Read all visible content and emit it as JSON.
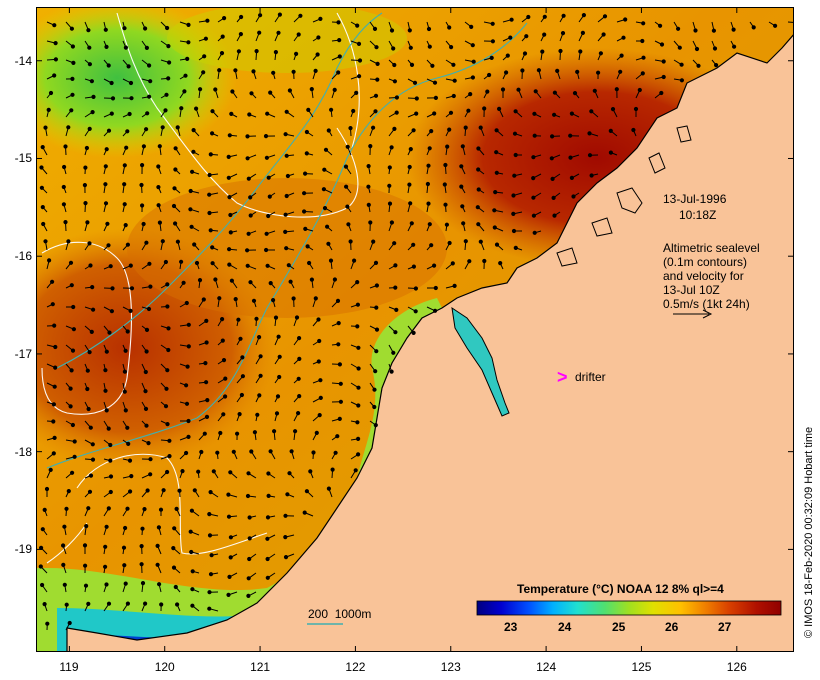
{
  "map": {
    "lon_range": [
      118.65,
      126.6
    ],
    "lat_range": [
      -20.05,
      -13.45
    ],
    "x_ticks": [
      119,
      120,
      121,
      122,
      123,
      124,
      125,
      126
    ],
    "y_ticks": [
      -14,
      -15,
      -16,
      -17,
      -18,
      -19
    ],
    "colors": {
      "land": "#f9c398",
      "coast": "#000000",
      "contour": "#ffffff",
      "isobath": "#40b0b0",
      "arrow": "#000000",
      "drifter": "#ff00ff"
    }
  },
  "annotations": {
    "date": "13-Jul-1996",
    "time": "10:18Z",
    "sealevel_1": "Altimetric sealevel",
    "sealevel_2": "(0.1m contours)",
    "sealevel_3": "and velocity for",
    "sealevel_4": "13-Jul 10Z",
    "scale_label": "0.5m/s (1kt 24h)",
    "drifter_marker": ">",
    "drifter_label": "drifter",
    "isobath_label": "200  1000m"
  },
  "legend": {
    "title": "Temperature (°C) NOAA 12 8% ql>=4",
    "ticks": [
      "23",
      "24",
      "25",
      "26",
      "27"
    ],
    "tick_values": [
      23,
      24,
      25,
      26,
      27
    ],
    "range": [
      22.3,
      27.95
    ],
    "colormap": [
      "#000080",
      "#0000d0",
      "#0050ff",
      "#00b0ff",
      "#20e0d0",
      "#50e070",
      "#a0e020",
      "#e0e000",
      "#ffc000",
      "#f08000",
      "#d84000",
      "#b01000",
      "#900000"
    ]
  },
  "credit": "© IMOS 18-Feb-2020 00:32:09 Hobart time"
}
